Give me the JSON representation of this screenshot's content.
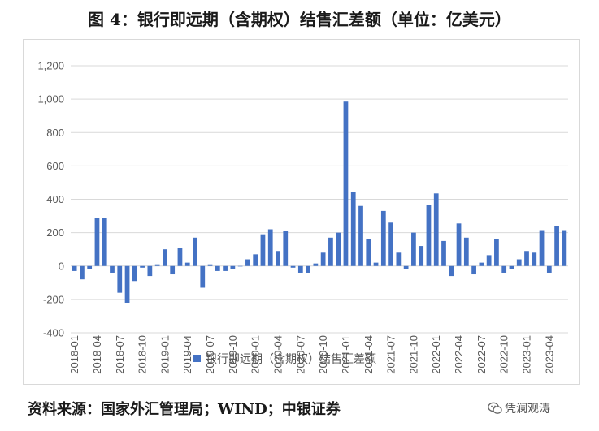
{
  "title": "图 4：银行即远期（含期权）结售汇差额（单位：亿美元）",
  "source": "资料来源：国家外汇管理局；WIND；中银证券",
  "watermark": "凭澜观涛",
  "watermark_icon": "wechat-icon",
  "colors": {
    "bar": "#4472C4",
    "grid": "#d9d9d9",
    "axis_text": "#595959"
  },
  "chart_data": {
    "type": "bar",
    "title": "",
    "xlabel": "",
    "ylabel": "",
    "ylim": [
      -400,
      1200
    ],
    "yticks": [
      -400,
      -200,
      0,
      200,
      400,
      600,
      800,
      1000,
      1200
    ],
    "ytick_labels": [
      "-400",
      "-200",
      "0",
      "200",
      "400",
      "600",
      "800",
      "1,000",
      "1,200"
    ],
    "grid": true,
    "legend_position": "bottom",
    "categories": [
      "2018-01",
      "2018-02",
      "2018-03",
      "2018-04",
      "2018-05",
      "2018-06",
      "2018-07",
      "2018-08",
      "2018-09",
      "2018-10",
      "2018-11",
      "2018-12",
      "2019-01",
      "2019-02",
      "2019-03",
      "2019-04",
      "2019-05",
      "2019-06",
      "2019-07",
      "2019-08",
      "2019-09",
      "2019-10",
      "2019-11",
      "2019-12",
      "2020-01",
      "2020-02",
      "2020-03",
      "2020-04",
      "2020-05",
      "2020-06",
      "2020-07",
      "2020-08",
      "2020-09",
      "2020-10",
      "2020-11",
      "2020-12",
      "2021-01",
      "2021-02",
      "2021-03",
      "2021-04",
      "2021-05",
      "2021-06",
      "2021-07",
      "2021-08",
      "2021-09",
      "2021-10",
      "2021-11",
      "2021-12",
      "2022-01",
      "2022-02",
      "2022-03",
      "2022-04",
      "2022-05",
      "2022-06",
      "2022-07",
      "2022-08",
      "2022-09",
      "2022-10",
      "2022-11",
      "2022-12",
      "2023-01",
      "2023-02",
      "2023-03",
      "2023-04",
      "2023-05",
      "2023-06"
    ],
    "tick_labels": [
      "2018-01",
      "2018-04",
      "2018-07",
      "2018-10",
      "2019-01",
      "2019-04",
      "2019-07",
      "2019-10",
      "2020-01",
      "2020-04",
      "2020-07",
      "2020-10",
      "2021-01",
      "2021-04",
      "2021-07",
      "2021-10",
      "2022-01",
      "2022-04",
      "2022-07",
      "2022-10",
      "2023-01",
      "2023-04"
    ],
    "series": [
      {
        "name": "银行即远期（含期权）结售汇差额",
        "values": [
          -30,
          -80,
          -20,
          290,
          290,
          -40,
          -160,
          -220,
          -90,
          -10,
          -60,
          10,
          100,
          -50,
          110,
          20,
          170,
          -130,
          10,
          -30,
          -30,
          -20,
          0,
          40,
          70,
          190,
          220,
          90,
          210,
          -10,
          -40,
          -40,
          15,
          80,
          170,
          200,
          985,
          445,
          360,
          160,
          20,
          330,
          260,
          80,
          -20,
          200,
          120,
          365,
          435,
          150,
          -60,
          255,
          170,
          -50,
          20,
          65,
          160,
          -40,
          -20,
          40,
          90,
          80,
          215,
          -40,
          240,
          215
        ]
      }
    ]
  }
}
